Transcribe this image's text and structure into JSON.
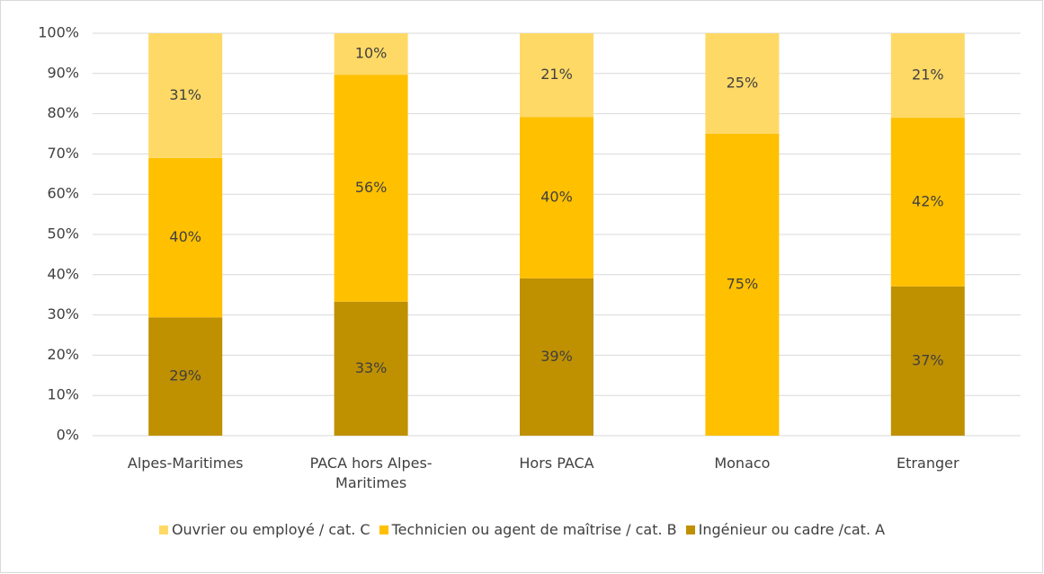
{
  "chart_data": {
    "type": "bar",
    "stacked": true,
    "categories": [
      "Alpes-Maritimes",
      "PACA hors Alpes-Maritimes",
      "Hors PACA",
      "Monaco",
      "Etranger"
    ],
    "series": [
      {
        "name": "Ingénieur ou cadre /cat. A",
        "color": "#bf9000",
        "values": [
          29.4,
          33.3,
          39.1,
          0,
          37.1
        ],
        "value_labels": [
          "29%",
          "33%",
          "39%",
          null,
          "37%"
        ]
      },
      {
        "name": "Technicien ou agent de maîtrise / cat. B",
        "color": "#ffc000",
        "values": [
          39.6,
          56.4,
          40.1,
          75,
          41.9
        ],
        "value_labels": [
          "40%",
          "56%",
          "40%",
          "75%",
          "42%"
        ]
      },
      {
        "name": "Ouvrier ou employé / cat. C",
        "color": "#ffd966",
        "values": [
          31.0,
          10.3,
          20.8,
          25,
          21.0
        ],
        "value_labels": [
          "31%",
          "10%",
          "21%",
          "25%",
          "21%"
        ]
      }
    ],
    "legend_order": [
      2,
      1,
      0
    ],
    "ylim": [
      0,
      100
    ],
    "yticks": [
      {
        "value": 0,
        "label": "0%"
      },
      {
        "value": 10,
        "label": "10%"
      },
      {
        "value": 20,
        "label": "20%"
      },
      {
        "value": 30,
        "label": "30%"
      },
      {
        "value": 40,
        "label": "40%"
      },
      {
        "value": 50,
        "label": "50%"
      },
      {
        "value": 60,
        "label": "60%"
      },
      {
        "value": 70,
        "label": "70%"
      },
      {
        "value": 80,
        "label": "80%"
      },
      {
        "value": 90,
        "label": "90%"
      },
      {
        "value": 100,
        "label": "100%"
      }
    ],
    "grid": true,
    "legend": "bottom"
  }
}
